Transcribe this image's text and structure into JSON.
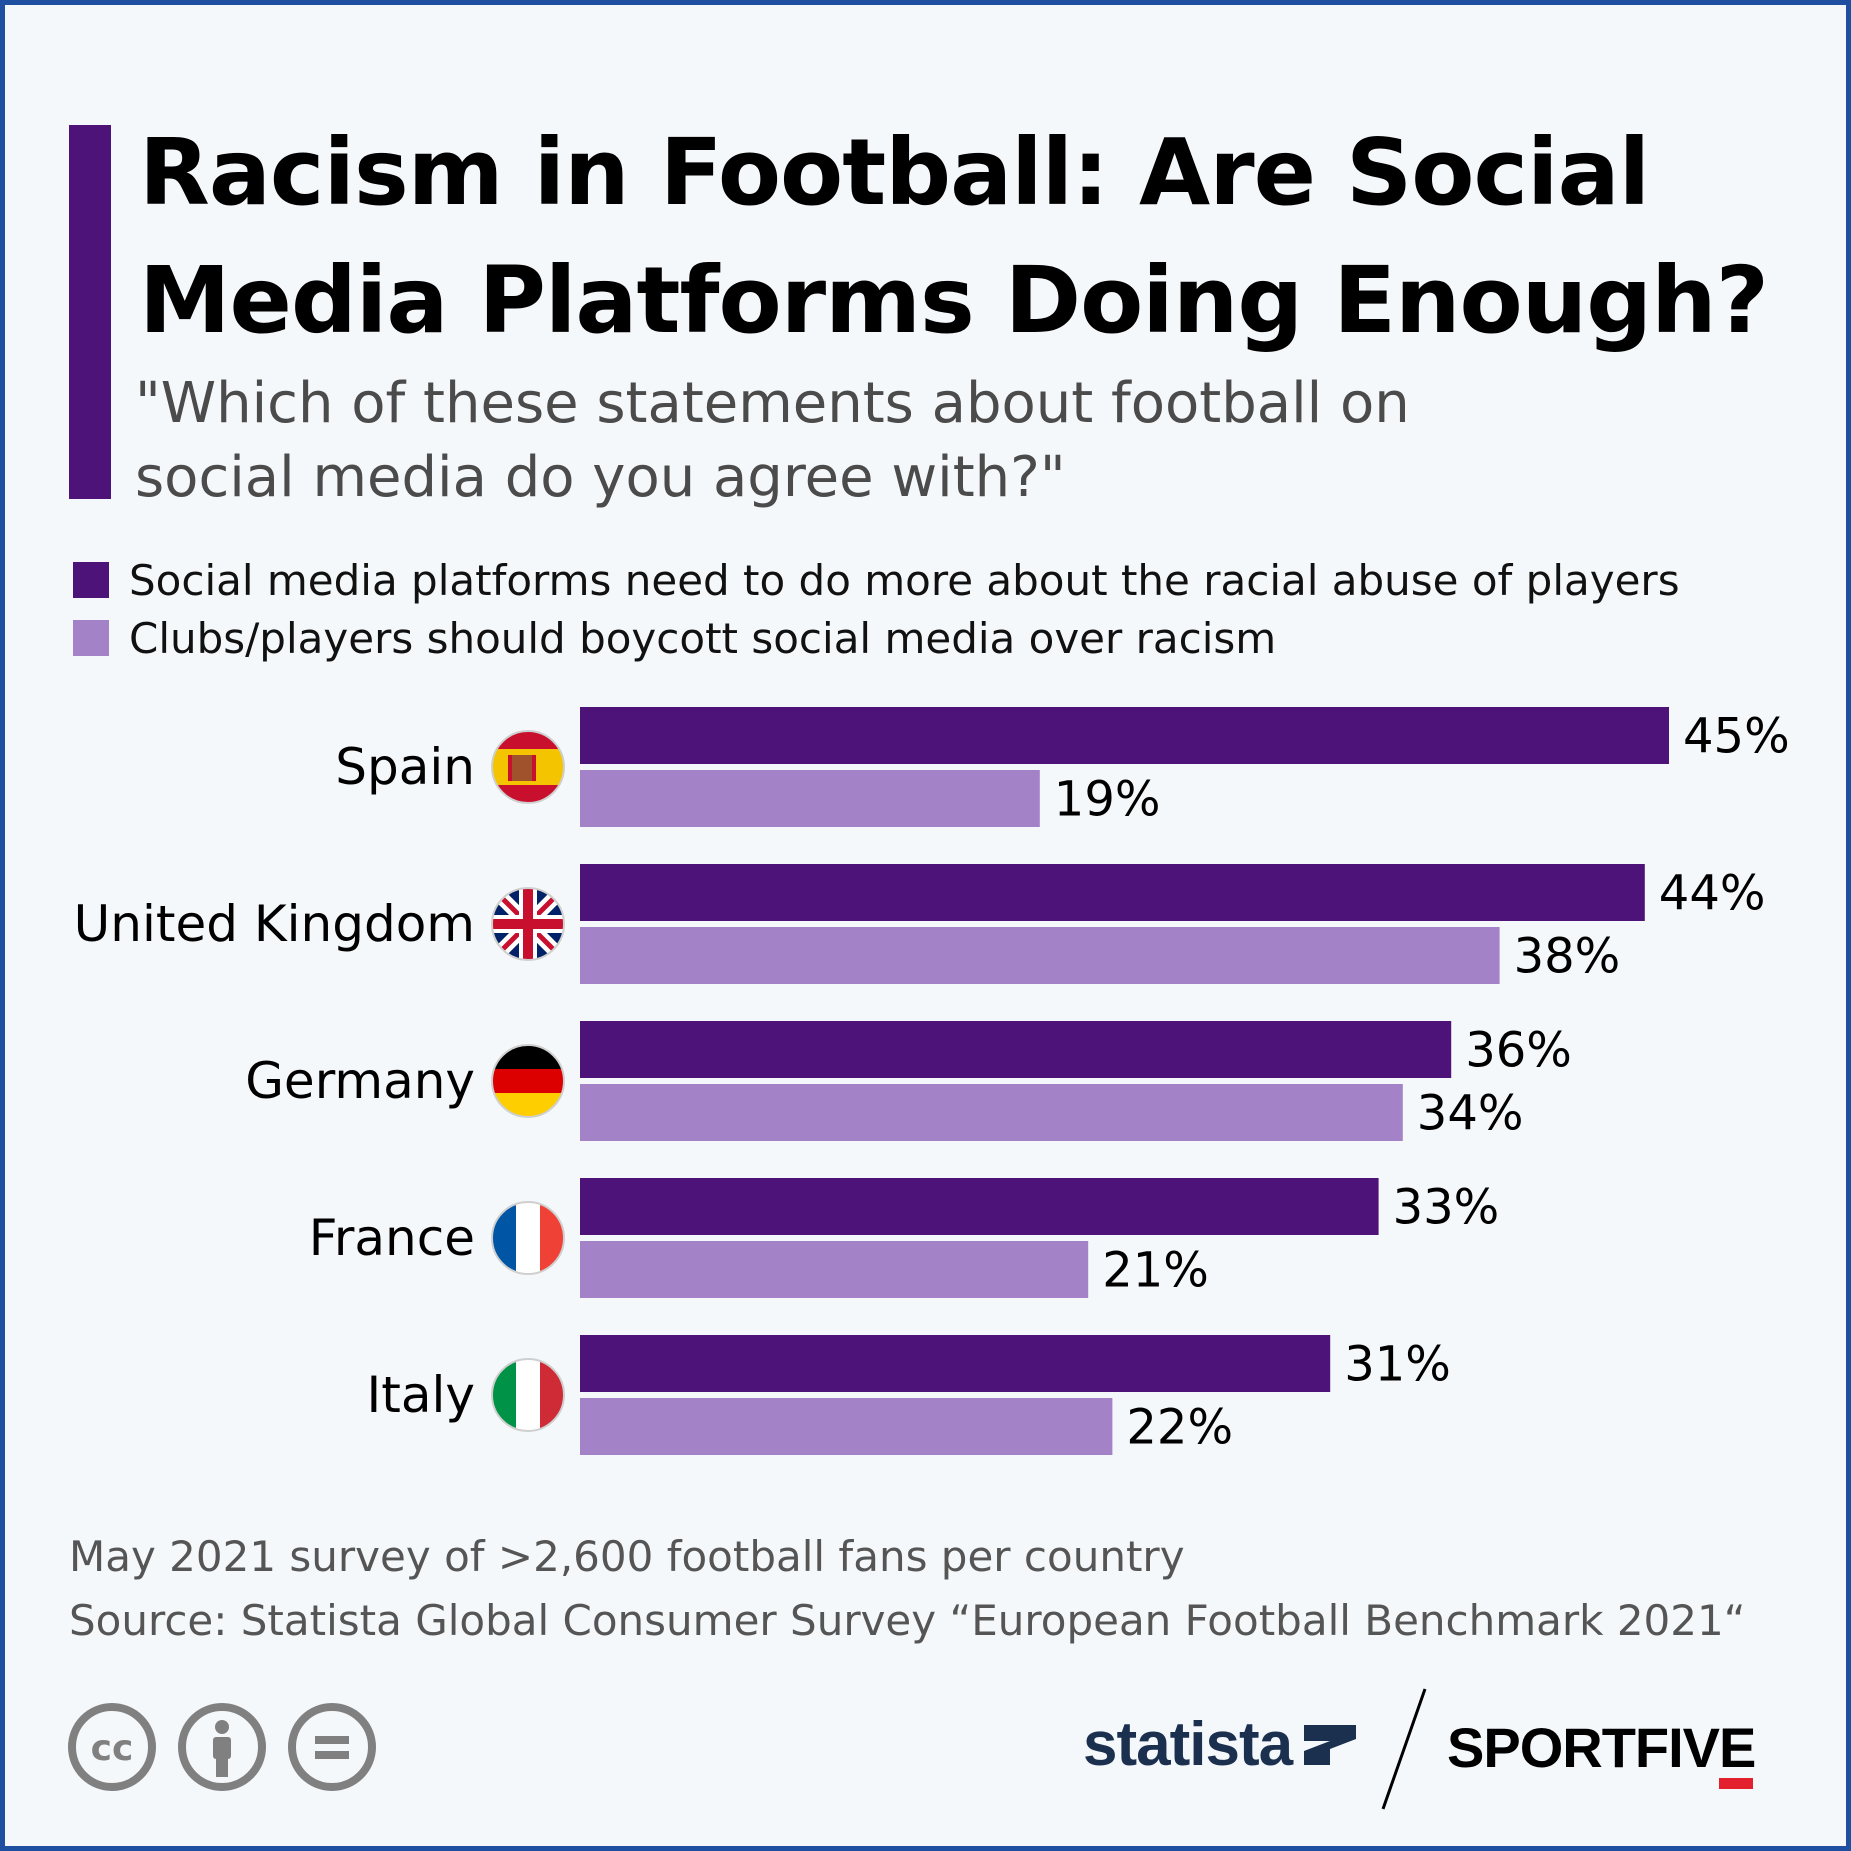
{
  "header": {
    "title": "Racism in Football: Are Social Media Platforms Doing Enough?",
    "subtitle": "\"Which of these statements about football on social media do you agree with?\""
  },
  "colors": {
    "accent": "#4e1378",
    "series_dark": "#4e1378",
    "series_light": "#a382c8"
  },
  "chart_data": {
    "type": "bar",
    "orientation": "horizontal",
    "categories": [
      "Spain",
      "United Kingdom",
      "Germany",
      "France",
      "Italy"
    ],
    "series": [
      {
        "name": "Social media platforms need to do more about the racial abuse of players",
        "values": [
          45,
          44,
          36,
          33,
          31
        ],
        "labels": [
          "45%",
          "44%",
          "36%",
          "33%",
          "31%"
        ],
        "color": "#4e1378"
      },
      {
        "name": "Clubs/players should boycott social media over racism",
        "values": [
          19,
          38,
          34,
          21,
          22
        ],
        "labels": [
          "19%",
          "38%",
          "34%",
          "21%",
          "22%"
        ],
        "color": "#a382c8"
      }
    ],
    "xlim": [
      0,
      45
    ],
    "legend_position": "top-left",
    "grid": false,
    "flags": [
      "spain-flag-icon",
      "uk-flag-icon",
      "germany-flag-icon",
      "france-flag-icon",
      "italy-flag-icon"
    ]
  },
  "footer": {
    "note": "May 2021 survey of >2,600 football fans per country",
    "source": "Source: Statista Global Consumer Survey “European Football Benchmark 2021“",
    "cc_icons": [
      "cc-icon",
      "attribution-icon",
      "no-derivatives-icon"
    ],
    "cc_text": "cc",
    "statista_logo": "statista",
    "sportfive_logo": "SPORTFIVE"
  }
}
